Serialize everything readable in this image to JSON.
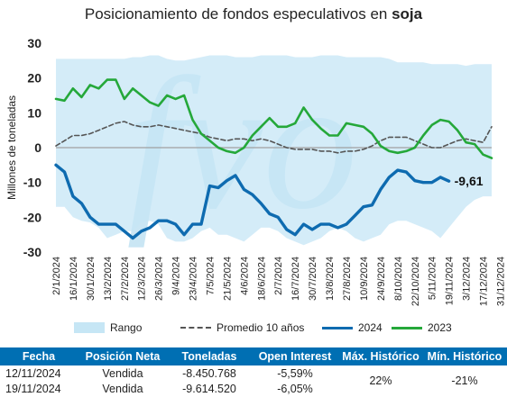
{
  "title_prefix": "Posicionamiento de fondos especulativos en ",
  "title_bold": "soja",
  "chart_data": {
    "type": "line",
    "ylabel": "Millones de toneladas",
    "ylim": [
      -30,
      30
    ],
    "yticks": [
      30,
      20,
      10,
      0,
      -10,
      -20,
      -30
    ],
    "x_tick_labels": [
      "2/1/2024",
      "16/1/2024",
      "30/1/2024",
      "13/2/2024",
      "27/2/2024",
      "12/3/2024",
      "26/3/2024",
      "9/4/2024",
      "23/4/2024",
      "7/5/2024",
      "21/5/2024",
      "4/6/2024",
      "18/6/2024",
      "2/7/2024",
      "16/7/2024",
      "30/7/2024",
      "13/8/2024",
      "27/8/2024",
      "10/9/2024",
      "24/9/2024",
      "8/10/2024",
      "22/10/2024",
      "5/11/2024",
      "19/11/2024",
      "3/12/2024",
      "17/12/2024",
      "31/12/2024"
    ],
    "annotation": "-9,61",
    "colors": {
      "range": "#c6e6f5",
      "promedio": "#555555",
      "s2024": "#0e6bb0",
      "s2023": "#25a83a",
      "zero": "#a0a0a0"
    },
    "range_upper": [
      25.5,
      25.5,
      25.5,
      25.5,
      25.5,
      25.5,
      25.5,
      25.5,
      25.5,
      26,
      26,
      26.5,
      26.5,
      25.5,
      25,
      25,
      25.5,
      26,
      26.5,
      26.5,
      26.5,
      26,
      26,
      26,
      26.5,
      26.5,
      26.5,
      26.5,
      26,
      26,
      26,
      26.5,
      26.5,
      26.5,
      26,
      26,
      26,
      26,
      26,
      25.5,
      24.5,
      24.5,
      24.5,
      24.5,
      24,
      24,
      24,
      24,
      23.5,
      24,
      24,
      24
    ],
    "range_lower": [
      -17,
      -17,
      -20,
      -21,
      -21.5,
      -23,
      -26,
      -25,
      -24,
      -24,
      -21.5,
      -21,
      -22,
      -26,
      -27,
      -27,
      -26,
      -24,
      -23,
      -25,
      -25,
      -26,
      -27,
      -25,
      -23,
      -23,
      -24,
      -26,
      -27,
      -28,
      -27,
      -26,
      -24,
      -23,
      -24,
      -26,
      -27,
      -26,
      -25,
      -22,
      -21,
      -21,
      -22,
      -23,
      -24,
      -26,
      -23,
      -20,
      -17,
      -15,
      -14,
      -14
    ],
    "promedio": [
      0.5,
      2,
      3.5,
      3.5,
      4,
      5,
      6,
      7,
      7.5,
      6.5,
      6,
      6,
      6.5,
      6,
      5.5,
      5,
      4.5,
      4,
      3,
      2.5,
      2,
      2.5,
      2.5,
      2,
      2.5,
      2,
      1,
      0,
      -0.5,
      -0.5,
      -0.5,
      -1,
      -1,
      -1.5,
      -1,
      -1,
      -0.5,
      0.5,
      2,
      3,
      3,
      3,
      2,
      1,
      0,
      0,
      1,
      2,
      2.5,
      2,
      1.5,
      6
    ],
    "s2024": [
      -5,
      -7,
      -14,
      -16,
      -20,
      -22,
      -22,
      -22,
      -24,
      -26,
      -24,
      -23,
      -21,
      -21,
      -22,
      -25,
      -22,
      -22,
      -11,
      -11.5,
      -9.5,
      -8,
      -12,
      -13.5,
      -16,
      -19,
      -20,
      -23.5,
      -25,
      -22,
      -23.5,
      -22,
      -22,
      -23,
      -22,
      -19.5,
      -17,
      -16.5,
      -12,
      -8.5,
      -6.5,
      -7,
      -9.5,
      -10,
      -10,
      -8.5,
      -9.61
    ],
    "s2023": [
      14,
      13.5,
      17,
      14.5,
      18,
      17,
      19.5,
      19.5,
      14,
      17,
      15,
      13,
      12,
      15,
      14,
      15,
      8,
      4,
      2,
      0,
      -1,
      -1.5,
      0,
      3.5,
      6,
      8.5,
      6,
      6,
      7,
      11.5,
      8,
      5.5,
      3.5,
      3.5,
      7,
      6.5,
      6,
      4,
      0.5,
      -1,
      -1.5,
      -1,
      0,
      3.5,
      6.5,
      8,
      7.5,
      5,
      1.5,
      1,
      -2,
      -3
    ]
  },
  "legend": {
    "range": "Rango",
    "promedio": "Promedio 10 años",
    "s2024": "2024",
    "s2023": "2023"
  },
  "table": {
    "headers": [
      "Fecha",
      "Posición Neta",
      "Toneladas",
      "Open Interest",
      "Máx. Histórico",
      "Mín. Histórico"
    ],
    "rows": [
      {
        "fecha": "12/11/2024",
        "posicion": "Vendida",
        "toneladas": "-8.450.768",
        "oi": "-5,59%"
      },
      {
        "fecha": "19/11/2024",
        "posicion": "Vendida",
        "toneladas": "-9.614.520",
        "oi": "-6,05%"
      }
    ],
    "max_hist": "22%",
    "min_hist": "-21%"
  }
}
